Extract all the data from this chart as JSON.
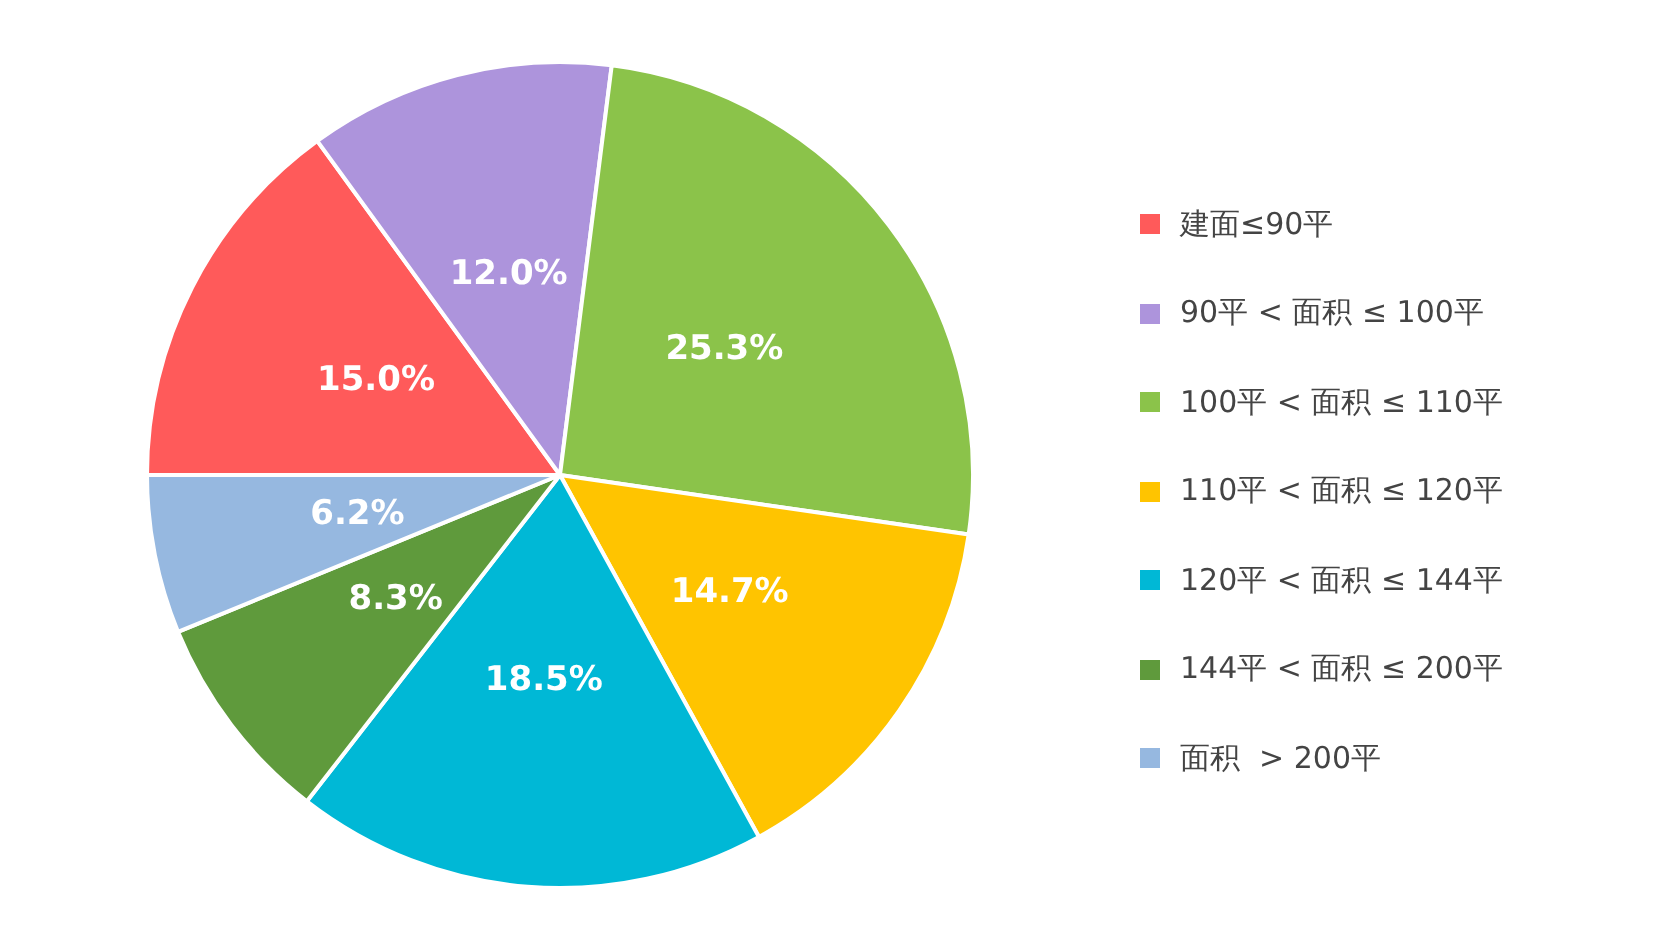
{
  "chart_data": {
    "type": "pie",
    "categories": [
      "建面≤90平",
      "90平 < 面积 ≤ 100平",
      "100平 < 面积 ≤ 110平",
      "110平 < 面积 ≤ 120平",
      "120平 < 面积 ≤ 144平",
      "144平 < 面积 ≤ 200平",
      "面积  > 200平"
    ],
    "values": [
      15.0,
      12.0,
      25.3,
      14.7,
      18.5,
      8.3,
      6.2
    ],
    "colors": [
      "#ff5a5a",
      "#ad94dc",
      "#8bc34a",
      "#ffc400",
      "#00b8d6",
      "#5f9a3c",
      "#96b8e0"
    ],
    "value_labels": [
      "15.0%",
      "12.0%",
      "25.3%",
      "14.7%",
      "18.5%",
      "8.3%",
      "6.2%"
    ],
    "legend": "right"
  }
}
